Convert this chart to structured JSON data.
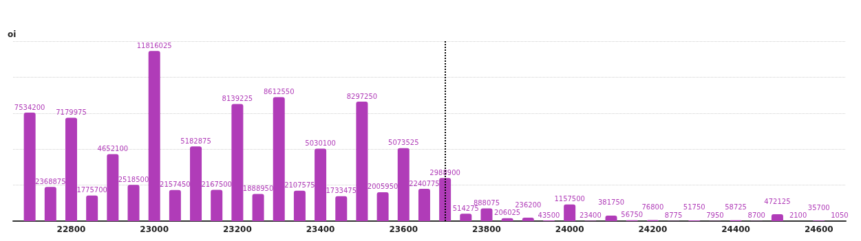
{
  "chart_data": {
    "type": "bar",
    "ylabel": "oi",
    "x": [
      22700,
      22750,
      22800,
      22850,
      22900,
      22950,
      23000,
      23050,
      23100,
      23150,
      23200,
      23250,
      23300,
      23350,
      23400,
      23450,
      23500,
      23550,
      23600,
      23650,
      23700,
      23750,
      23800,
      23850,
      23900,
      23950,
      24000,
      24050,
      24100,
      24150,
      24200,
      24250,
      24300,
      24350,
      24400,
      24450,
      24500,
      24550,
      24600,
      24650
    ],
    "values": [
      7534200,
      2368875,
      7179975,
      1775700,
      4652100,
      2518500,
      11816025,
      2157450,
      5182875,
      2167500,
      8139225,
      1888950,
      8612550,
      2107575,
      5030100,
      1733475,
      8297250,
      2005950,
      5073525,
      2240775,
      2988900,
      514275,
      888075,
      206025,
      236200,
      43500,
      1157500,
      23400,
      381750,
      56750,
      76800,
      8775,
      51750,
      7950,
      58725,
      8700,
      472125,
      2100,
      35700,
      1050
    ],
    "color": "#b03cb8",
    "data_labels": true,
    "xlim": [
      22660,
      24665
    ],
    "xticks": [
      22800,
      23000,
      23200,
      23400,
      23600,
      23800,
      24000,
      24200,
      24400,
      24600
    ],
    "ylim": [
      0,
      12500000
    ],
    "yticks": [
      {
        "value": 0,
        "label": null
      },
      {
        "value": 2500000,
        "label": null
      },
      {
        "value": 5000000,
        "label": null
      },
      {
        "value": 7500000,
        "label": null
      },
      {
        "value": 10000000,
        "label": null
      },
      {
        "value": 12500000,
        "label": null
      }
    ],
    "tick_labels": "x",
    "grid": "y",
    "ref_lines": [
      {
        "axis": "x",
        "value": 23700,
        "color": "#000000",
        "line_style": "dotted"
      }
    ]
  }
}
